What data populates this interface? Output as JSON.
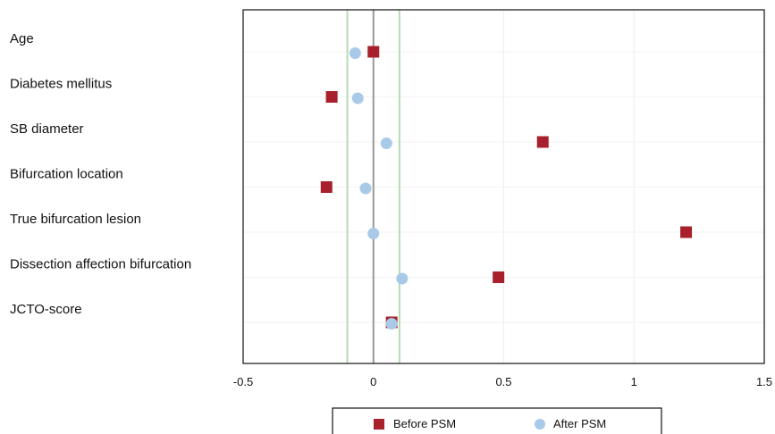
{
  "chart_data": {
    "type": "scatter",
    "categories": [
      "Age",
      "Diabetes mellitus",
      "SB diameter",
      "Bifurcation location",
      "True bifurcation lesion",
      "Dissection affection bifurcation",
      "JCTO-score"
    ],
    "series": [
      {
        "name": "Before PSM",
        "marker": "square",
        "color": "#a8202c",
        "values": [
          0.0,
          -0.16,
          0.65,
          -0.18,
          1.2,
          0.48,
          0.07
        ]
      },
      {
        "name": "After PSM",
        "marker": "circle",
        "color": "#a9c9e8",
        "values": [
          -0.07,
          -0.06,
          0.05,
          -0.03,
          0.0,
          0.11,
          0.07
        ]
      }
    ],
    "xlim": [
      -0.5,
      1.5
    ],
    "xticks": [
      "-0.5",
      "0",
      "0.5",
      "1",
      "1.5"
    ],
    "xtick_values": [
      -0.5,
      0,
      0.5,
      1,
      1.5
    ],
    "reference_lines": [
      {
        "x": 0,
        "color": "#999999"
      },
      {
        "x": -0.1,
        "color": "#b7ddb0"
      },
      {
        "x": 0.1,
        "color": "#b7ddb0"
      }
    ],
    "grid": true,
    "legend": {
      "position": "bottom"
    },
    "title": "",
    "xlabel": "",
    "ylabel": ""
  }
}
